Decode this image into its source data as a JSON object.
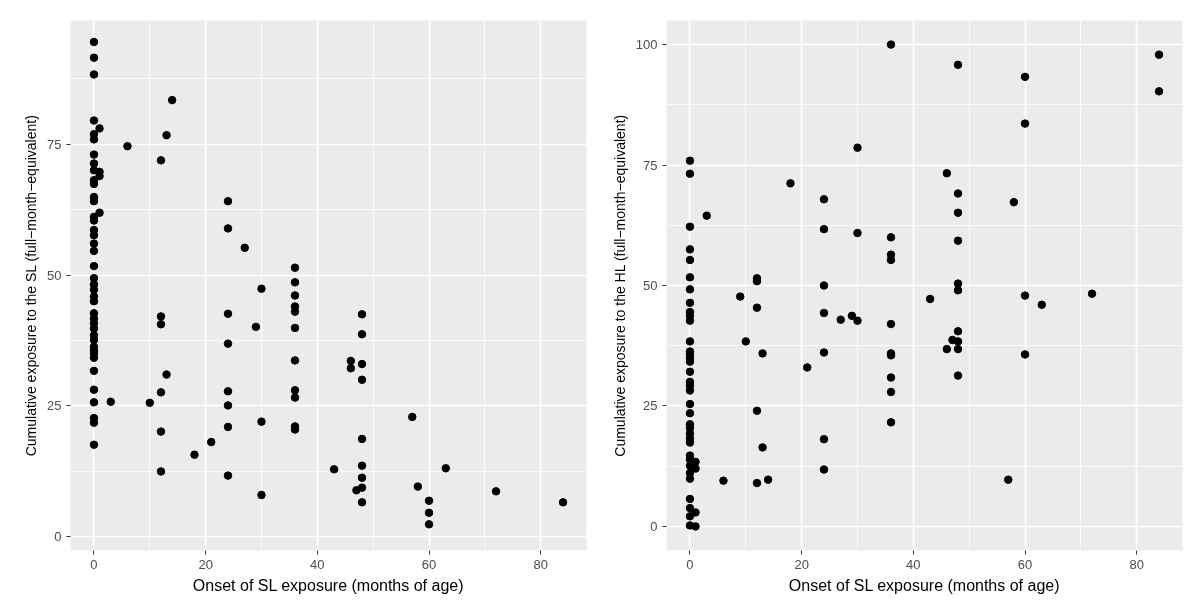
{
  "chart_data": [
    {
      "type": "scatter",
      "xlabel": "Onset of SL exposure (months of age)",
      "ylabel": "Cumulative exposure to the SL (full−month−equivalent)",
      "color": "#000000",
      "marker": "circle",
      "grid": true,
      "xlim": [
        -4.2,
        88.2
      ],
      "ylim": [
        -2.6,
        98.6
      ],
      "xticks": [
        0,
        20,
        40,
        60,
        80
      ],
      "yticks": [
        0,
        25,
        50,
        75
      ],
      "x": [
        0,
        0,
        0,
        0,
        0,
        0,
        0,
        0,
        0,
        0,
        0,
        0,
        0,
        0,
        0,
        0,
        0,
        0,
        0,
        0,
        0,
        0,
        0,
        0,
        0,
        0,
        0,
        0,
        0,
        0,
        0,
        0,
        0,
        0,
        0,
        0,
        0,
        0,
        0,
        0,
        0,
        1,
        1,
        1,
        1,
        3,
        6,
        10,
        12,
        12,
        12,
        12,
        12,
        12,
        13,
        13,
        14,
        18,
        21,
        24,
        24,
        24,
        24,
        24,
        24,
        24,
        24,
        27,
        29,
        30,
        30,
        30,
        36,
        36,
        36,
        36,
        36,
        36,
        36,
        36,
        36,
        36,
        36,
        43,
        46,
        46,
        47,
        48,
        48,
        48,
        48,
        48,
        48,
        48,
        48,
        48,
        57,
        58,
        60,
        60,
        60,
        63,
        72,
        84
      ],
      "values": [
        94.5,
        91.5,
        88.3,
        79.5,
        76.9,
        75.9,
        73.0,
        71.3,
        70.0,
        68.1,
        67.4,
        64.9,
        64.1,
        61.1,
        60.4,
        58.6,
        57.6,
        56.0,
        54.6,
        51.7,
        49.4,
        48.2,
        47.2,
        45.9,
        45.0,
        42.7,
        41.7,
        40.8,
        39.8,
        38.5,
        37.6,
        36.3,
        35.6,
        35.0,
        34.2,
        31.7,
        28.1,
        25.7,
        22.7,
        21.8,
        17.6,
        78.0,
        69.7,
        68.9,
        61.9,
        25.8,
        74.6,
        25.6,
        71.9,
        42.1,
        40.6,
        27.6,
        20.1,
        12.5,
        76.7,
        31.0,
        83.4,
        15.7,
        18.1,
        64.1,
        58.9,
        42.6,
        36.9,
        27.8,
        25.1,
        21.0,
        11.7,
        55.2,
        40.1,
        47.4,
        22.0,
        8.0,
        51.4,
        48.6,
        46.1,
        44.0,
        43.0,
        39.9,
        33.7,
        28.0,
        26.6,
        21.1,
        20.5,
        12.9,
        33.6,
        32.2,
        8.9,
        42.5,
        38.7,
        33.0,
        30.0,
        18.7,
        13.6,
        11.3,
        9.4,
        6.6,
        22.9,
        9.6,
        6.9,
        4.6,
        2.4,
        13.1,
        8.7,
        6.6
      ]
    },
    {
      "type": "scatter",
      "xlabel": "Onset of SL exposure (months of age)",
      "ylabel": "Cumulative exposure to the HL (full−month−equivalent)",
      "color": "#000000",
      "marker": "circle",
      "grid": true,
      "xlim": [
        -4.2,
        88.2
      ],
      "ylim": [
        -5,
        105
      ],
      "xticks": [
        0,
        20,
        40,
        60,
        80
      ],
      "yticks": [
        0,
        25,
        50,
        75,
        100
      ],
      "x": [
        0,
        0,
        0,
        0,
        0,
        0,
        0,
        0,
        0,
        0,
        0,
        0,
        0,
        0,
        0,
        0,
        0,
        0,
        0,
        0,
        0,
        0,
        0,
        0,
        0,
        0,
        0,
        0,
        0,
        0,
        0,
        0,
        0,
        0,
        0,
        0,
        1,
        1,
        1,
        1,
        3,
        6,
        9,
        10,
        12,
        12,
        12,
        12,
        12,
        13,
        13,
        14,
        18,
        21,
        24,
        24,
        24,
        24,
        24,
        24,
        24,
        27,
        29,
        30,
        30,
        30,
        36,
        36,
        36,
        36,
        36,
        36,
        36,
        36,
        36,
        36,
        43,
        46,
        46,
        47,
        48,
        48,
        48,
        48,
        48,
        48,
        48,
        48,
        48,
        48,
        57,
        58,
        60,
        60,
        60,
        60,
        63,
        72,
        84,
        84
      ],
      "values": [
        75.9,
        73.2,
        62.2,
        57.5,
        55.3,
        51.7,
        49.2,
        46.4,
        44.5,
        43.7,
        42.7,
        38.4,
        36.3,
        35.7,
        34.9,
        34.2,
        32.1,
        30.0,
        29.2,
        28.2,
        25.4,
        23.5,
        21.2,
        20.4,
        19.3,
        18.3,
        17.4,
        14.7,
        13.9,
        12.6,
        11.1,
        9.9,
        5.7,
        3.8,
        2.1,
        0.2,
        13.4,
        12.0,
        2.9,
        0.0,
        64.5,
        9.5,
        47.7,
        38.4,
        51.5,
        50.9,
        45.4,
        24.0,
        9.0,
        35.9,
        16.4,
        9.7,
        71.2,
        33.0,
        67.9,
        61.7,
        50.0,
        44.3,
        36.1,
        18.1,
        11.8,
        42.9,
        43.7,
        78.6,
        60.9,
        42.7,
        100.0,
        60.0,
        56.4,
        55.3,
        42.0,
        35.9,
        35.5,
        30.9,
        27.9,
        21.6,
        47.2,
        73.3,
        36.8,
        38.7,
        95.8,
        69.1,
        65.1,
        59.3,
        50.4,
        49.0,
        40.5,
        38.4,
        36.8,
        31.3,
        9.7,
        67.3,
        93.3,
        83.6,
        47.9,
        35.7,
        46.0,
        48.3,
        97.9,
        90.3
      ]
    }
  ]
}
